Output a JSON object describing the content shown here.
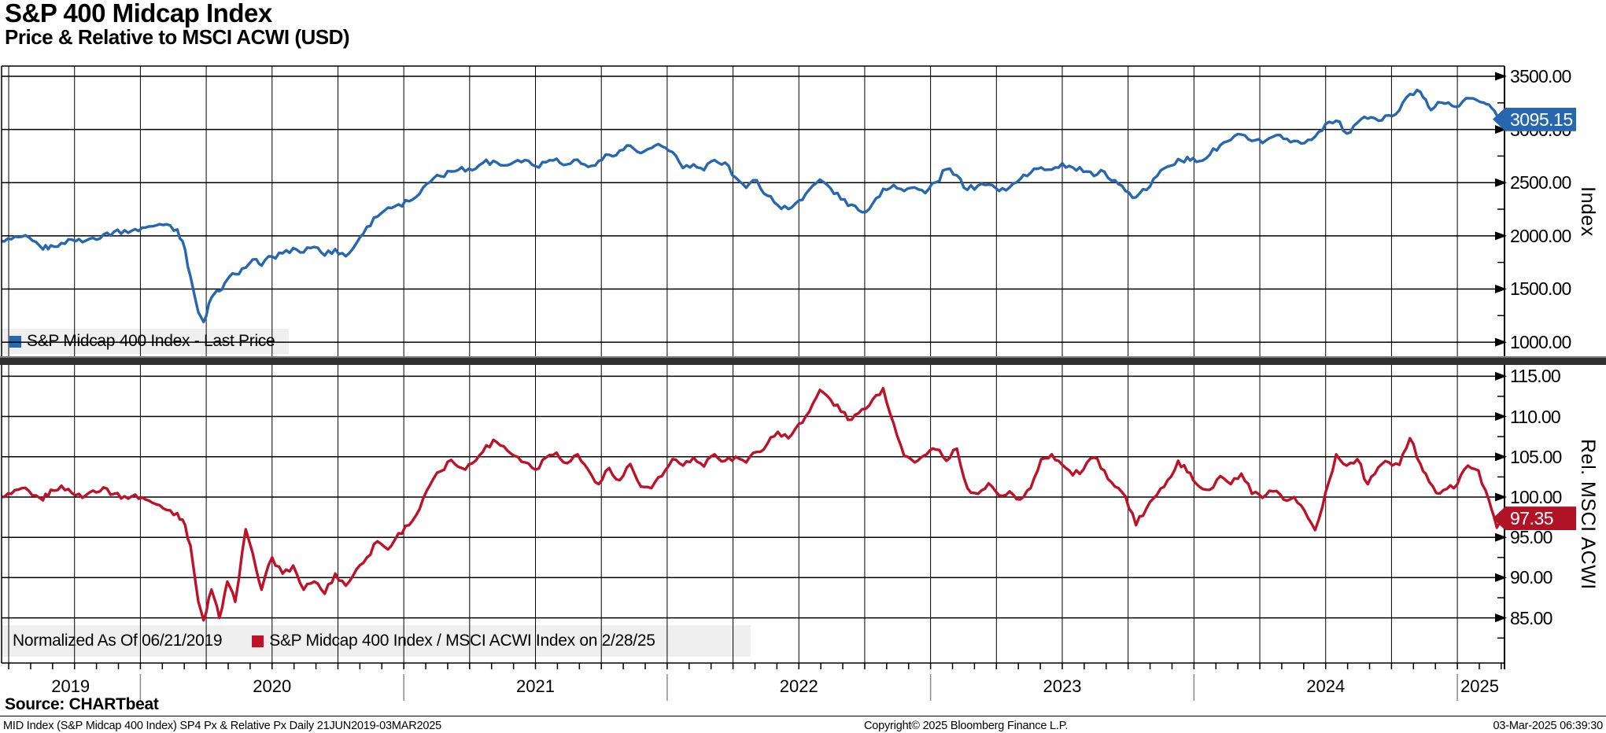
{
  "header": {
    "title": "S&P 400 Midcap Index",
    "subtitle": "Price & Relative to MSCI ACWI (USD)"
  },
  "colors": {
    "price_line": "#2767AE",
    "price_tag_bg": "#2767AE",
    "relative_line": "#BE1228",
    "relative_tag_bg": "#B01226",
    "grid": "#000000",
    "legend_bg": "#EFEFEF",
    "divider": "#313131",
    "year_separator": "#8a8a8a"
  },
  "x_axis": {
    "start": 2019.47,
    "end": 2025.17,
    "year_labels": [
      "2019",
      "2020",
      "2021",
      "2022",
      "2023",
      "2024",
      "2025"
    ]
  },
  "chart_data": [
    {
      "type": "line",
      "panel": "top",
      "series_name": "S&P Midcap 400 Index - Last Price",
      "color": "#2767AE",
      "axis_title": "Index",
      "ylim": [
        860,
        3596
      ],
      "yticks": [
        {
          "v": 3500,
          "label": "3500.00"
        },
        {
          "v": 3000,
          "label": "3000.00"
        },
        {
          "v": 2500,
          "label": "2500.00"
        },
        {
          "v": 2000,
          "label": "2000.00"
        },
        {
          "v": 1500,
          "label": "1500.00"
        },
        {
          "v": 1000,
          "label": "1000.00"
        }
      ],
      "last_price": {
        "value": 3095.15,
        "label": "3095.15"
      },
      "points": [
        [
          2019.47,
          1950
        ],
        [
          2019.51,
          1968
        ],
        [
          2019.55,
          1992
        ],
        [
          2019.59,
          1955
        ],
        [
          2019.63,
          1872
        ],
        [
          2019.66,
          1910
        ],
        [
          2019.7,
          1932
        ],
        [
          2019.74,
          1964
        ],
        [
          2019.78,
          1940
        ],
        [
          2019.82,
          1980
        ],
        [
          2019.86,
          2012
        ],
        [
          2019.9,
          2038
        ],
        [
          2019.94,
          2052
        ],
        [
          2019.98,
          2062
        ],
        [
          2020.02,
          2078
        ],
        [
          2020.06,
          2098
        ],
        [
          2020.1,
          2108
        ],
        [
          2020.14,
          2060
        ],
        [
          2020.16,
          1950
        ],
        [
          2020.19,
          1620
        ],
        [
          2020.22,
          1280
        ],
        [
          2020.24,
          1190
        ],
        [
          2020.27,
          1420
        ],
        [
          2020.3,
          1480
        ],
        [
          2020.33,
          1590
        ],
        [
          2020.36,
          1640
        ],
        [
          2020.4,
          1700
        ],
        [
          2020.44,
          1780
        ],
        [
          2020.46,
          1720
        ],
        [
          2020.5,
          1805
        ],
        [
          2020.54,
          1835
        ],
        [
          2020.58,
          1885
        ],
        [
          2020.62,
          1845
        ],
        [
          2020.66,
          1895
        ],
        [
          2020.7,
          1815
        ],
        [
          2020.74,
          1875
        ],
        [
          2020.78,
          1808
        ],
        [
          2020.82,
          1930
        ],
        [
          2020.86,
          2085
        ],
        [
          2020.9,
          2180
        ],
        [
          2020.94,
          2265
        ],
        [
          2020.98,
          2295
        ],
        [
          2021.02,
          2325
        ],
        [
          2021.06,
          2395
        ],
        [
          2021.1,
          2505
        ],
        [
          2021.14,
          2560
        ],
        [
          2021.18,
          2605
        ],
        [
          2021.22,
          2645
        ],
        [
          2021.26,
          2618
        ],
        [
          2021.3,
          2685
        ],
        [
          2021.34,
          2705
        ],
        [
          2021.38,
          2662
        ],
        [
          2021.42,
          2695
        ],
        [
          2021.46,
          2712
        ],
        [
          2021.5,
          2655
        ],
        [
          2021.54,
          2692
        ],
        [
          2021.58,
          2725
        ],
        [
          2021.62,
          2672
        ],
        [
          2021.66,
          2715
        ],
        [
          2021.7,
          2648
        ],
        [
          2021.74,
          2705
        ],
        [
          2021.78,
          2762
        ],
        [
          2021.82,
          2802
        ],
        [
          2021.86,
          2848
        ],
        [
          2021.9,
          2778
        ],
        [
          2021.94,
          2825
        ],
        [
          2021.98,
          2842
        ],
        [
          2022.02,
          2788
        ],
        [
          2022.06,
          2638
        ],
        [
          2022.1,
          2672
        ],
        [
          2022.14,
          2618
        ],
        [
          2022.18,
          2712
        ],
        [
          2022.22,
          2688
        ],
        [
          2022.26,
          2548
        ],
        [
          2022.3,
          2452
        ],
        [
          2022.34,
          2522
        ],
        [
          2022.38,
          2378
        ],
        [
          2022.42,
          2288
        ],
        [
          2022.46,
          2252
        ],
        [
          2022.5,
          2332
        ],
        [
          2022.54,
          2435
        ],
        [
          2022.58,
          2528
        ],
        [
          2022.62,
          2448
        ],
        [
          2022.66,
          2342
        ],
        [
          2022.7,
          2292
        ],
        [
          2022.74,
          2222
        ],
        [
          2022.78,
          2302
        ],
        [
          2022.82,
          2442
        ],
        [
          2022.86,
          2478
        ],
        [
          2022.9,
          2422
        ],
        [
          2022.94,
          2455
        ],
        [
          2022.98,
          2402
        ],
        [
          2023.02,
          2502
        ],
        [
          2023.06,
          2625
        ],
        [
          2023.1,
          2568
        ],
        [
          2023.14,
          2432
        ],
        [
          2023.18,
          2472
        ],
        [
          2023.22,
          2482
        ],
        [
          2023.26,
          2422
        ],
        [
          2023.3,
          2455
        ],
        [
          2023.34,
          2532
        ],
        [
          2023.38,
          2592
        ],
        [
          2023.42,
          2642
        ],
        [
          2023.46,
          2622
        ],
        [
          2023.5,
          2682
        ],
        [
          2023.54,
          2642
        ],
        [
          2023.58,
          2602
        ],
        [
          2023.62,
          2562
        ],
        [
          2023.66,
          2602
        ],
        [
          2023.7,
          2522
        ],
        [
          2023.74,
          2422
        ],
        [
          2023.78,
          2362
        ],
        [
          2023.82,
          2432
        ],
        [
          2023.86,
          2562
        ],
        [
          2023.9,
          2652
        ],
        [
          2023.94,
          2722
        ],
        [
          2024.02,
          2702
        ],
        [
          2024.06,
          2762
        ],
        [
          2024.1,
          2852
        ],
        [
          2024.14,
          2902
        ],
        [
          2024.18,
          2952
        ],
        [
          2024.22,
          2892
        ],
        [
          2024.26,
          2872
        ],
        [
          2024.3,
          2932
        ],
        [
          2024.34,
          2912
        ],
        [
          2024.38,
          2892
        ],
        [
          2024.42,
          2872
        ],
        [
          2024.46,
          2932
        ],
        [
          2024.5,
          3052
        ],
        [
          2024.54,
          3082
        ],
        [
          2024.58,
          2962
        ],
        [
          2024.62,
          3062
        ],
        [
          2024.66,
          3102
        ],
        [
          2024.7,
          3082
        ],
        [
          2024.74,
          3132
        ],
        [
          2024.78,
          3182
        ],
        [
          2024.82,
          3332
        ],
        [
          2024.86,
          3352
        ],
        [
          2024.88,
          3282
        ],
        [
          2024.9,
          3182
        ],
        [
          2024.94,
          3252
        ],
        [
          2024.98,
          3222
        ],
        [
          2025.02,
          3262
        ],
        [
          2025.06,
          3292
        ],
        [
          2025.1,
          3252
        ],
        [
          2025.13,
          3202
        ],
        [
          2025.15,
          3132
        ],
        [
          2025.17,
          3095.15
        ]
      ]
    },
    {
      "type": "line",
      "panel": "bottom",
      "series_name": "S&P Midcap 400 Index / MSCI ACWI Index on 2/28/25",
      "normalized_note": "Normalized As Of 06/21/2019",
      "color": "#BE1228",
      "axis_title": "Rel. MSCI ACWI",
      "ylim": [
        79.4,
        116.4
      ],
      "yticks": [
        {
          "v": 115,
          "label": "115.00"
        },
        {
          "v": 110,
          "label": "110.00"
        },
        {
          "v": 105,
          "label": "105.00"
        },
        {
          "v": 100,
          "label": "100.00"
        },
        {
          "v": 95,
          "label": "95.00"
        },
        {
          "v": 90,
          "label": "90.00"
        },
        {
          "v": 85,
          "label": "85.00"
        }
      ],
      "last_price": {
        "value": 97.35,
        "label": "97.35"
      },
      "points": [
        [
          2019.47,
          100.0
        ],
        [
          2019.51,
          100.4
        ],
        [
          2019.55,
          101.1
        ],
        [
          2019.59,
          100.2
        ],
        [
          2019.63,
          99.6
        ],
        [
          2019.66,
          100.9
        ],
        [
          2019.7,
          101.4
        ],
        [
          2019.74,
          100.5
        ],
        [
          2019.78,
          99.9
        ],
        [
          2019.82,
          100.8
        ],
        [
          2019.86,
          101.2
        ],
        [
          2019.9,
          100.4
        ],
        [
          2019.94,
          100.1
        ],
        [
          2019.98,
          100.3
        ],
        [
          2020.02,
          99.7
        ],
        [
          2020.06,
          99.1
        ],
        [
          2020.1,
          98.4
        ],
        [
          2020.14,
          98.0
        ],
        [
          2020.16,
          97.2
        ],
        [
          2020.19,
          94.0
        ],
        [
          2020.22,
          87.0
        ],
        [
          2020.24,
          84.7
        ],
        [
          2020.27,
          88.5
        ],
        [
          2020.3,
          85.0
        ],
        [
          2020.33,
          89.5
        ],
        [
          2020.36,
          87.0
        ],
        [
          2020.4,
          96.0
        ],
        [
          2020.44,
          91.0
        ],
        [
          2020.46,
          88.5
        ],
        [
          2020.5,
          92.5
        ],
        [
          2020.54,
          90.5
        ],
        [
          2020.58,
          91.5
        ],
        [
          2020.62,
          88.5
        ],
        [
          2020.66,
          89.5
        ],
        [
          2020.7,
          88.0
        ],
        [
          2020.74,
          90.5
        ],
        [
          2020.78,
          89.0
        ],
        [
          2020.82,
          91.0
        ],
        [
          2020.86,
          92.5
        ],
        [
          2020.9,
          94.5
        ],
        [
          2020.94,
          93.5
        ],
        [
          2020.98,
          95.5
        ],
        [
          2021.02,
          96.5
        ],
        [
          2021.06,
          98.5
        ],
        [
          2021.1,
          101.5
        ],
        [
          2021.14,
          103.2
        ],
        [
          2021.18,
          104.6
        ],
        [
          2021.22,
          103.6
        ],
        [
          2021.26,
          104.2
        ],
        [
          2021.3,
          105.6
        ],
        [
          2021.34,
          107.1
        ],
        [
          2021.38,
          106.3
        ],
        [
          2021.42,
          105.1
        ],
        [
          2021.46,
          104.3
        ],
        [
          2021.5,
          103.4
        ],
        [
          2021.54,
          104.9
        ],
        [
          2021.58,
          105.5
        ],
        [
          2021.62,
          104.2
        ],
        [
          2021.66,
          105.3
        ],
        [
          2021.7,
          103.4
        ],
        [
          2021.74,
          101.6
        ],
        [
          2021.78,
          103.6
        ],
        [
          2021.82,
          102.1
        ],
        [
          2021.86,
          104.1
        ],
        [
          2021.9,
          101.3
        ],
        [
          2021.94,
          101.1
        ],
        [
          2021.98,
          102.6
        ],
        [
          2022.02,
          104.7
        ],
        [
          2022.06,
          103.9
        ],
        [
          2022.1,
          104.9
        ],
        [
          2022.14,
          103.8
        ],
        [
          2022.18,
          105.3
        ],
        [
          2022.22,
          104.5
        ],
        [
          2022.26,
          105.0
        ],
        [
          2022.3,
          104.3
        ],
        [
          2022.34,
          105.6
        ],
        [
          2022.38,
          106.6
        ],
        [
          2022.42,
          108.1
        ],
        [
          2022.46,
          107.3
        ],
        [
          2022.5,
          109.1
        ],
        [
          2022.54,
          110.6
        ],
        [
          2022.58,
          113.3
        ],
        [
          2022.62,
          112.1
        ],
        [
          2022.66,
          110.6
        ],
        [
          2022.7,
          109.6
        ],
        [
          2022.74,
          110.9
        ],
        [
          2022.78,
          112.1
        ],
        [
          2022.82,
          113.5
        ],
        [
          2022.86,
          109.1
        ],
        [
          2022.9,
          105.1
        ],
        [
          2022.94,
          104.3
        ],
        [
          2023.02,
          105.9
        ],
        [
          2023.06,
          104.5
        ],
        [
          2023.1,
          106.0
        ],
        [
          2023.14,
          101.1
        ],
        [
          2023.18,
          100.4
        ],
        [
          2023.22,
          101.7
        ],
        [
          2023.26,
          100.2
        ],
        [
          2023.3,
          100.7
        ],
        [
          2023.34,
          99.7
        ],
        [
          2023.38,
          101.1
        ],
        [
          2023.42,
          104.7
        ],
        [
          2023.46,
          105.3
        ],
        [
          2023.5,
          104.0
        ],
        [
          2023.54,
          102.7
        ],
        [
          2023.58,
          103.4
        ],
        [
          2023.62,
          104.9
        ],
        [
          2023.66,
          103.3
        ],
        [
          2023.7,
          101.3
        ],
        [
          2023.74,
          100.1
        ],
        [
          2023.78,
          96.5
        ],
        [
          2023.82,
          98.6
        ],
        [
          2023.86,
          100.3
        ],
        [
          2023.9,
          102.1
        ],
        [
          2023.94,
          104.5
        ],
        [
          2024.02,
          101.3
        ],
        [
          2024.06,
          100.9
        ],
        [
          2024.1,
          102.6
        ],
        [
          2024.14,
          101.6
        ],
        [
          2024.18,
          102.9
        ],
        [
          2024.22,
          100.4
        ],
        [
          2024.26,
          99.9
        ],
        [
          2024.3,
          100.7
        ],
        [
          2024.34,
          99.7
        ],
        [
          2024.38,
          100.0
        ],
        [
          2024.42,
          98.3
        ],
        [
          2024.46,
          95.9
        ],
        [
          2024.5,
          100.6
        ],
        [
          2024.54,
          105.3
        ],
        [
          2024.58,
          103.9
        ],
        [
          2024.62,
          104.7
        ],
        [
          2024.66,
          101.6
        ],
        [
          2024.7,
          103.7
        ],
        [
          2024.74,
          104.3
        ],
        [
          2024.78,
          104.0
        ],
        [
          2024.82,
          107.3
        ],
        [
          2024.86,
          104.1
        ],
        [
          2024.88,
          102.9
        ],
        [
          2024.92,
          100.5
        ],
        [
          2024.96,
          101.0
        ],
        [
          2025.0,
          101.6
        ],
        [
          2025.04,
          103.9
        ],
        [
          2025.08,
          103.3
        ],
        [
          2025.12,
          99.6
        ],
        [
          2025.15,
          96.2
        ],
        [
          2025.17,
          97.35
        ]
      ]
    }
  ],
  "footer": {
    "source": "Source: CHARTbeat",
    "left": "MID Index (S&P Midcap 400 Index) SP4 Px & Relative Px  Daily 21JUN2019-03MAR2025",
    "center": "Copyright© 2025 Bloomberg Finance L.P.",
    "right": "03-Mar-2025 06:39:30"
  }
}
